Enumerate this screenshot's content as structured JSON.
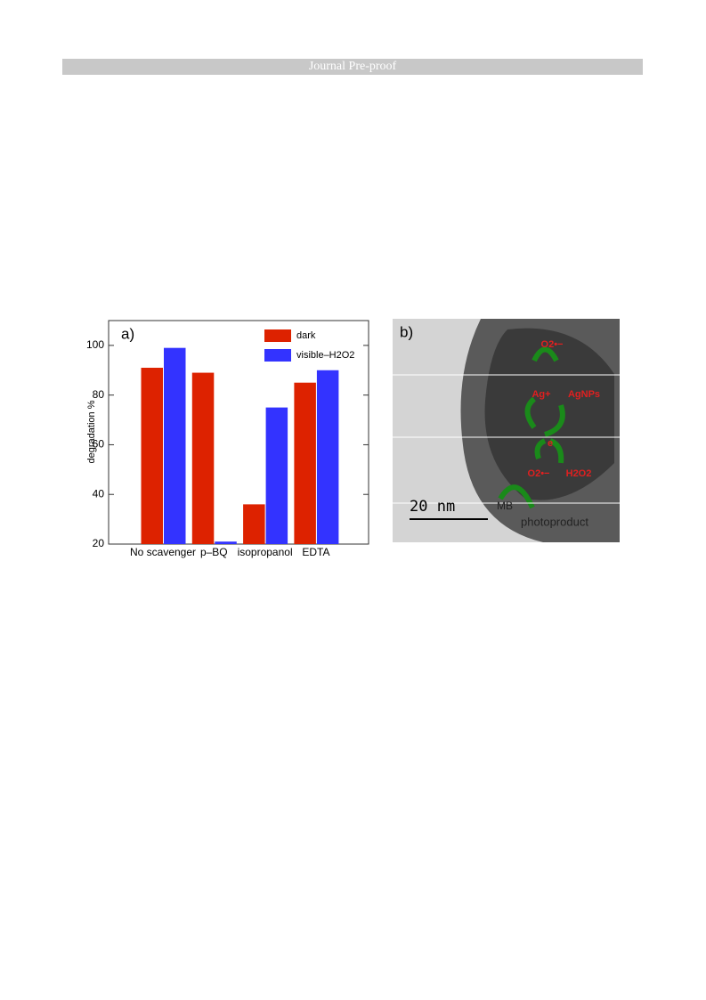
{
  "header": {
    "title": "Journal Pre-proof"
  },
  "chart_data": {
    "type": "bar",
    "panel_label": "a)",
    "ylabel": "degradation %",
    "categories": [
      "No scavenger",
      "p–BQ",
      "isopropanol",
      "EDTA"
    ],
    "series": [
      {
        "name": "dark",
        "color": "#dd2200",
        "values": [
          91,
          89,
          36,
          85
        ]
      },
      {
        "name": "visible–H2O2",
        "color": "#3333ff",
        "values": [
          99,
          21,
          75,
          90
        ]
      }
    ],
    "ylim": [
      20,
      110
    ],
    "yticks": [
      20,
      40,
      60,
      80,
      100
    ],
    "legend": "upper-right"
  },
  "figure_b": {
    "panel_label": "b)",
    "scale_bar": "20 nm",
    "annotations": [
      "O2•−",
      "Ag+",
      "AgNPs",
      "e",
      "O2•−",
      "H2O2",
      "MB",
      "photoproduct"
    ]
  }
}
